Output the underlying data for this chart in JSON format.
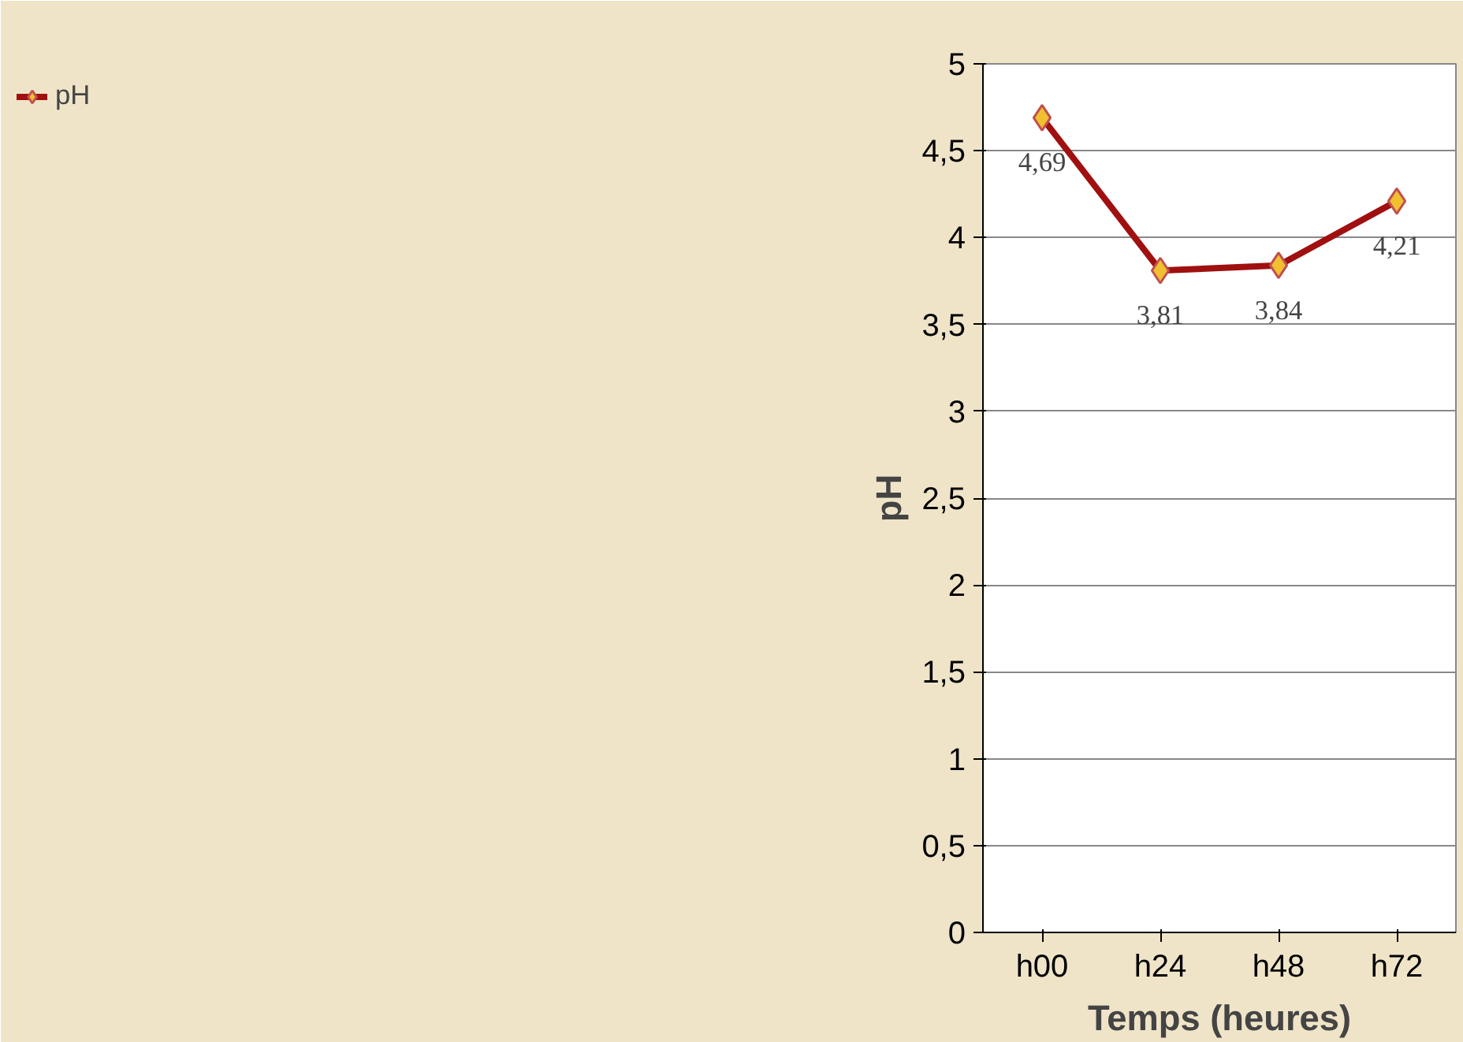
{
  "chart_data": {
    "type": "line",
    "xlabel": "Temps (heures)",
    "ylabel": "pH",
    "categories": [
      "h00",
      "h24",
      "h48",
      "h72"
    ],
    "series": [
      {
        "name": "pH",
        "color": "#a01010",
        "values": [
          4.69,
          3.81,
          3.84,
          4.21
        ],
        "value_labels": [
          "4,69",
          "3,81",
          "3,84",
          "4,21"
        ]
      }
    ],
    "ylim": [
      0,
      5
    ],
    "yticks": [
      0,
      {
        "value": 0.5,
        "label": "0,5"
      },
      1,
      {
        "value": 1.5,
        "label": "1,5"
      },
      2,
      {
        "value": 2.5,
        "label": "2,5"
      },
      3,
      {
        "value": 3.5,
        "label": "3,5"
      },
      4,
      {
        "value": 4.5,
        "label": "4,5"
      },
      5
    ],
    "grid": "y",
    "legend": "left",
    "marker": "diamond",
    "line_style": "solid"
  }
}
